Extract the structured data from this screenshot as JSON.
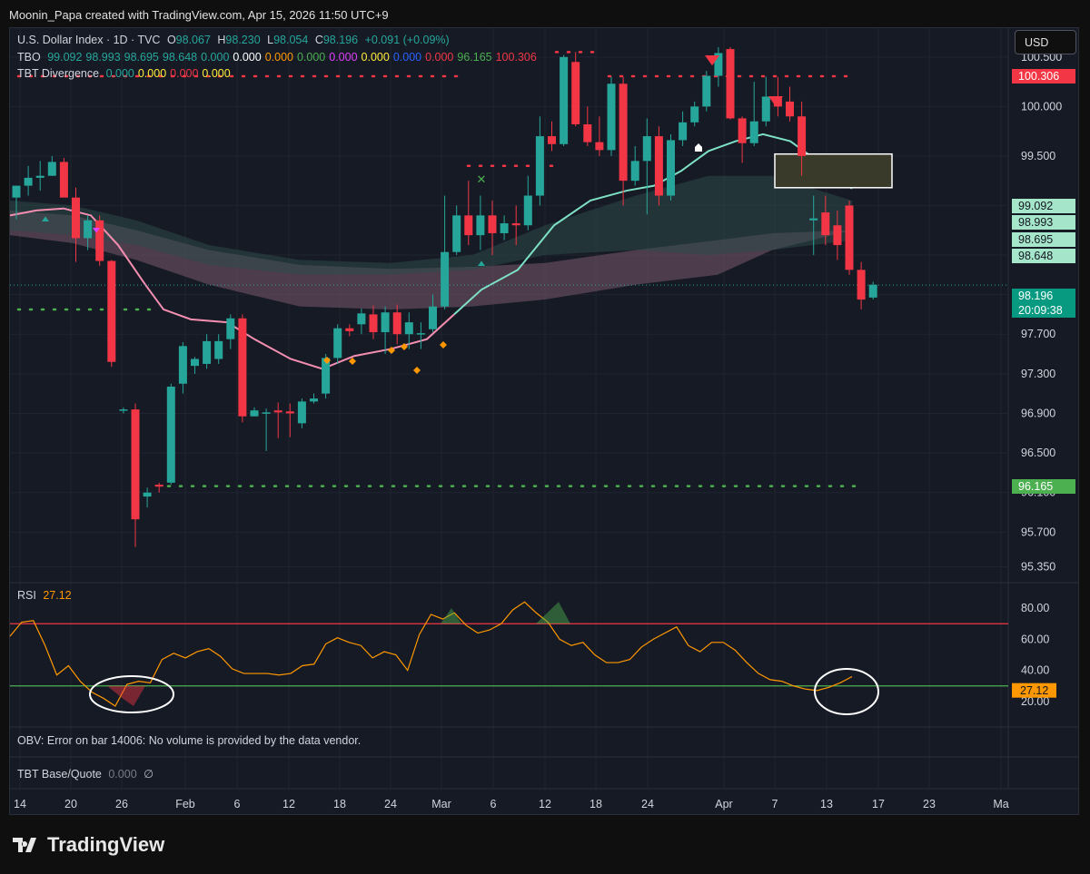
{
  "header": "Moonin_Papa created with TradingView.com, Apr 15, 2026 11:50 UTC+9",
  "currency_button": "USD",
  "symbol_legend": {
    "name": "U.S. Dollar Index · 1D · TVC",
    "o_label": "O",
    "o_value": "98.067",
    "h_label": "H",
    "h_value": "98.230",
    "l_label": "L",
    "l_value": "98.054",
    "c_label": "C",
    "c_value": "98.196",
    "change": "+0.091 (+0.09%)"
  },
  "tbo_legend": {
    "label": "TBO",
    "values": [
      {
        "v": "99.092",
        "color": "#26a69a"
      },
      {
        "v": "98.993",
        "color": "#26a69a"
      },
      {
        "v": "98.695",
        "color": "#26a69a"
      },
      {
        "v": "98.648",
        "color": "#26a69a"
      },
      {
        "v": "0.000",
        "color": "#26a69a"
      },
      {
        "v": "0.000",
        "color": "#ffffff"
      },
      {
        "v": "0.000",
        "color": "#ff9800"
      },
      {
        "v": "0.000",
        "color": "#4caf50"
      },
      {
        "v": "0.000",
        "color": "#e040fb"
      },
      {
        "v": "0.000",
        "color": "#ffeb3b"
      },
      {
        "v": "0.000",
        "color": "#2962ff"
      },
      {
        "v": "0.000",
        "color": "#f23645"
      },
      {
        "v": "96.165",
        "color": "#4caf50"
      },
      {
        "v": "100.306",
        "color": "#f23645"
      }
    ]
  },
  "tbt_divergence_legend": {
    "label": "TBT Divergence",
    "values": [
      {
        "v": "0.000",
        "color": "#26a69a"
      },
      {
        "v": "0.000",
        "color": "#ffeb3b"
      },
      {
        "v": "0.000",
        "color": "#f23645"
      },
      {
        "v": "0.000",
        "color": "#ffeb3b"
      }
    ]
  },
  "rsi_legend": {
    "label": "RSI",
    "value": "27.12"
  },
  "obv_message": "OBV: Error on bar 14006: No volume is provided by the data vendor.",
  "tbt_base_quote": {
    "label": "TBT Base/Quote",
    "value": "0.000",
    "symbol": "∅"
  },
  "price_axis_ticks": [
    "100.500",
    "100.000",
    "99.500",
    "99.000",
    "98.500",
    "98.100",
    "97.700",
    "97.300",
    "96.900",
    "96.500",
    "96.100",
    "95.700",
    "95.350"
  ],
  "price_badges": [
    {
      "text": "100.306",
      "bg": "#f23645",
      "color": "#ffffff"
    },
    {
      "text": "99.092",
      "bg": "#a5e5c9",
      "color": "#131722"
    },
    {
      "text": "98.993",
      "bg": "#a5e5c9",
      "color": "#131722"
    },
    {
      "text": "98.695",
      "bg": "#a5e5c9",
      "color": "#131722"
    },
    {
      "text": "98.648",
      "bg": "#a5e5c9",
      "color": "#131722"
    },
    {
      "text": "98.196",
      "bg": "#089981",
      "color": "#ffffff"
    },
    {
      "text": "20:09:38",
      "bg": "#089981",
      "color": "#ffffff"
    },
    {
      "text": "96.165",
      "bg": "#4caf50",
      "color": "#ffffff"
    }
  ],
  "rsi_axis_ticks": [
    "80.00",
    "60.00",
    "40.00",
    "20.00"
  ],
  "rsi_badge": {
    "text": "27.12",
    "bg": "#ff9800",
    "color": "#131722"
  },
  "time_axis_labels": [
    "14",
    "20",
    "26",
    "Feb",
    "6",
    "12",
    "18",
    "24",
    "Mar",
    "6",
    "12",
    "18",
    "24",
    "Apr",
    "7",
    "13",
    "17",
    "23",
    "Ma"
  ],
  "colors": {
    "up": "#26a69a",
    "down": "#f23645",
    "rsi_line": "#ff9800",
    "ma_pink": "#f48fb1",
    "ma_teal": "#7ee0c4"
  },
  "logo_text": "TradingView",
  "chart_data": {
    "type": "candlestick",
    "title": "U.S. Dollar Index · 1D · TVC",
    "ylim": [
      95.3,
      100.7
    ],
    "x_labels": [
      "14",
      "20",
      "26",
      "Feb",
      "6",
      "12",
      "18",
      "24",
      "Mar",
      "6",
      "12",
      "18",
      "24",
      "Apr",
      "7",
      "13",
      "17",
      "23",
      "Ma"
    ],
    "candles": [
      [
        99.08,
        99.2,
        98.86,
        99.2
      ],
      [
        99.2,
        99.4,
        99.1,
        99.28
      ],
      [
        99.28,
        99.45,
        99.15,
        99.3
      ],
      [
        99.3,
        99.5,
        99.3,
        99.44
      ],
      [
        99.44,
        99.48,
        99.1,
        99.08
      ],
      [
        99.08,
        99.18,
        98.43,
        98.67
      ],
      [
        98.67,
        98.9,
        98.55,
        98.85
      ],
      [
        98.85,
        98.9,
        98.39,
        98.44
      ],
      [
        98.44,
        98.45,
        97.37,
        97.42
      ],
      [
        96.94,
        96.96,
        96.9,
        96.94
      ],
      [
        96.94,
        97.0,
        95.55,
        95.83
      ],
      [
        96.06,
        96.15,
        95.95,
        96.1
      ],
      [
        96.18,
        96.2,
        96.1,
        96.16
      ],
      [
        96.2,
        97.2,
        96.18,
        97.17
      ],
      [
        97.2,
        97.62,
        97.1,
        97.58
      ],
      [
        97.38,
        97.47,
        97.3,
        97.45
      ],
      [
        97.4,
        97.7,
        97.35,
        97.63
      ],
      [
        97.45,
        97.7,
        97.4,
        97.63
      ],
      [
        97.65,
        97.9,
        97.55,
        97.86
      ],
      [
        97.86,
        97.9,
        96.81,
        96.87
      ],
      [
        96.87,
        96.96,
        96.9,
        96.93
      ],
      [
        96.9,
        96.95,
        96.52,
        96.91
      ],
      [
        96.93,
        97.01,
        96.65,
        96.91
      ],
      [
        96.92,
        97.0,
        96.66,
        96.9
      ],
      [
        96.8,
        97.05,
        96.75,
        97.02
      ],
      [
        97.02,
        97.1,
        97.0,
        97.05
      ],
      [
        97.1,
        97.5,
        97.05,
        97.46
      ],
      [
        97.46,
        97.8,
        97.4,
        97.76
      ],
      [
        97.76,
        97.8,
        97.68,
        97.73
      ],
      [
        97.8,
        97.96,
        97.7,
        97.91
      ],
      [
        97.9,
        97.99,
        97.65,
        97.72
      ],
      [
        97.72,
        97.98,
        97.5,
        97.92
      ],
      [
        97.92,
        98.0,
        97.6,
        97.7
      ],
      [
        97.7,
        97.92,
        97.55,
        97.82
      ],
      [
        97.7,
        97.82,
        97.55,
        97.71
      ],
      [
        97.75,
        98.1,
        97.72,
        97.98
      ],
      [
        97.98,
        99.1,
        97.95,
        98.53
      ],
      [
        98.53,
        99.0,
        98.5,
        98.9
      ],
      [
        98.9,
        99.25,
        98.6,
        98.7
      ],
      [
        98.7,
        99.1,
        98.55,
        98.9
      ],
      [
        98.9,
        99.05,
        98.5,
        98.72
      ],
      [
        98.72,
        98.9,
        98.65,
        98.82
      ],
      [
        98.82,
        99.0,
        98.6,
        98.8
      ],
      [
        98.8,
        99.3,
        98.75,
        99.1
      ],
      [
        99.1,
        99.9,
        99.0,
        99.7
      ],
      [
        99.7,
        99.85,
        99.55,
        99.62
      ],
      [
        99.62,
        100.52,
        99.6,
        100.5
      ],
      [
        100.45,
        100.55,
        99.8,
        99.82
      ],
      [
        99.82,
        100.0,
        99.6,
        99.64
      ],
      [
        99.64,
        99.9,
        99.5,
        99.56
      ],
      [
        99.56,
        100.3,
        99.5,
        100.23
      ],
      [
        100.23,
        100.3,
        99.0,
        99.25
      ],
      [
        99.25,
        99.6,
        99.2,
        99.45
      ],
      [
        99.45,
        99.88,
        98.91,
        99.7
      ],
      [
        99.7,
        99.8,
        99.0,
        99.1
      ],
      [
        99.1,
        99.72,
        99.05,
        99.66
      ],
      [
        99.66,
        99.95,
        99.6,
        99.84
      ],
      [
        99.84,
        100.05,
        99.8,
        100.0
      ],
      [
        100.0,
        100.36,
        99.95,
        100.31
      ],
      [
        100.31,
        100.6,
        100.2,
        100.54
      ],
      [
        100.58,
        100.6,
        99.87,
        99.88
      ],
      [
        99.88,
        99.9,
        99.43,
        99.63
      ],
      [
        99.63,
        100.25,
        99.6,
        99.85
      ],
      [
        99.85,
        100.3,
        99.8,
        100.1
      ],
      [
        100.1,
        100.3,
        99.9,
        100.0
      ],
      [
        100.05,
        100.2,
        99.85,
        99.9
      ],
      [
        99.9,
        100.05,
        99.3,
        99.5
      ],
      [
        98.85,
        99.1,
        98.5,
        98.87
      ],
      [
        98.93,
        99.1,
        98.6,
        98.7
      ],
      [
        98.8,
        98.95,
        98.45,
        98.6
      ],
      [
        99.0,
        99.05,
        98.3,
        98.35
      ],
      [
        98.35,
        98.43,
        97.95,
        98.05
      ],
      [
        98.07,
        98.23,
        98.05,
        98.2
      ]
    ],
    "rsi": {
      "title": "RSI",
      "ylim": [
        10,
        90
      ],
      "overbought": 70,
      "oversold": 30,
      "current": 27.12
    },
    "tbo_levels": {
      "resistance": 100.306,
      "support": 96.165
    }
  }
}
